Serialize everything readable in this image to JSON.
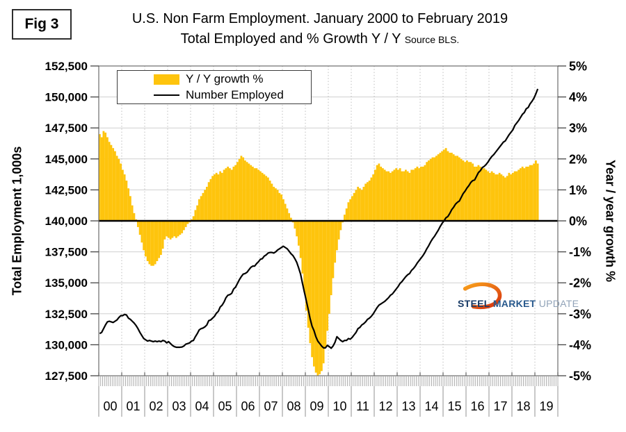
{
  "fig_label": "Fig 3",
  "title_line1": "U.S. Non Farm Employment. January 2000 to February 2019",
  "title_line2": "Total Employed and % Growth Y / Y",
  "source_note": "Source BLS.",
  "left_axis_title": "Total Employment 1,000s",
  "right_axis_title": "Year / year growth %",
  "legend": {
    "bar_label": "Y / Y growth %",
    "line_label": "Number Employed"
  },
  "logo": {
    "word1": "STEEL",
    "word2": "MARKET",
    "word3": "UPDATE",
    "word1_color": "#173A66",
    "word2_color": "#27588C",
    "word3_color": "#91A3B8",
    "swoosh_color_start": "#F9A11B",
    "swoosh_color_end": "#D93A10"
  },
  "colors": {
    "bar": "#FEC40D",
    "line": "#000000",
    "zero_line": "#000000",
    "grid_h": "#CFCFCF",
    "grid_v": "#BDBDBD",
    "border": "#6B6B6B",
    "tick": "#444444",
    "minor_tick": "#9A9A9A"
  },
  "chart_data": {
    "type": "bar+line",
    "title": "U.S. Non Farm Employment. January 2000 to February 2019 — Total Employed and % Growth Y/Y",
    "x_start": "2000-01",
    "x_end": "2019-02",
    "x_axis_span_years": 20,
    "x_year_labels": [
      "00",
      "01",
      "02",
      "03",
      "04",
      "05",
      "06",
      "07",
      "08",
      "09",
      "10",
      "11",
      "12",
      "13",
      "14",
      "15",
      "16",
      "17",
      "18",
      "19"
    ],
    "left_axis": {
      "min": 127500,
      "max": 152500,
      "step": 2500,
      "tick_labels": [
        "152,500",
        "150,000",
        "147,500",
        "145,000",
        "142,500",
        "140,000",
        "137,500",
        "135,000",
        "132,500",
        "130,000",
        "127,500"
      ]
    },
    "right_axis": {
      "min": -5,
      "max": 5,
      "step": 1,
      "tick_labels": [
        "5%",
        "4%",
        "3%",
        "2%",
        "1%",
        "0%",
        "-1%",
        "-2%",
        "-3%",
        "-4%",
        "-5%"
      ]
    },
    "series": [
      {
        "name": "Y / Y growth %",
        "type": "bar",
        "axis": "right",
        "unit": "%",
        "values": [
          2.8,
          2.7,
          2.9,
          2.85,
          2.7,
          2.55,
          2.45,
          2.35,
          2.25,
          2.1,
          2.0,
          1.85,
          1.65,
          1.5,
          1.3,
          1.05,
          0.8,
          0.5,
          0.25,
          0.05,
          -0.2,
          -0.45,
          -0.7,
          -0.95,
          -1.15,
          -1.3,
          -1.4,
          -1.45,
          -1.45,
          -1.4,
          -1.3,
          -1.2,
          -1.1,
          -0.9,
          -0.6,
          -0.5,
          -0.55,
          -0.6,
          -0.55,
          -0.5,
          -0.55,
          -0.5,
          -0.45,
          -0.4,
          -0.3,
          -0.2,
          -0.1,
          -0.05,
          0.05,
          0.15,
          0.35,
          0.5,
          0.7,
          0.8,
          0.9,
          1.0,
          1.1,
          1.25,
          1.35,
          1.45,
          1.5,
          1.55,
          1.5,
          1.6,
          1.55,
          1.65,
          1.7,
          1.75,
          1.7,
          1.65,
          1.75,
          1.8,
          1.9,
          2.0,
          2.1,
          2.05,
          1.95,
          1.9,
          1.85,
          1.8,
          1.75,
          1.7,
          1.7,
          1.65,
          1.6,
          1.55,
          1.5,
          1.45,
          1.4,
          1.3,
          1.2,
          1.1,
          1.05,
          1.0,
          0.9,
          0.85,
          0.7,
          0.55,
          0.4,
          0.25,
          0.1,
          -0.05,
          -0.25,
          -0.5,
          -0.8,
          -1.2,
          -1.7,
          -2.3,
          -2.9,
          -3.45,
          -3.95,
          -4.4,
          -4.7,
          -4.9,
          -5.0,
          -4.95,
          -4.85,
          -4.6,
          -4.1,
          -3.55,
          -3.0,
          -2.4,
          -1.85,
          -1.35,
          -0.95,
          -0.6,
          -0.3,
          -0.05,
          0.2,
          0.4,
          0.6,
          0.7,
          0.8,
          0.9,
          1.0,
          1.1,
          1.05,
          1.0,
          1.1,
          1.2,
          1.25,
          1.3,
          1.4,
          1.5,
          1.65,
          1.8,
          1.85,
          1.75,
          1.7,
          1.65,
          1.6,
          1.6,
          1.55,
          1.6,
          1.65,
          1.7,
          1.65,
          1.7,
          1.6,
          1.6,
          1.65,
          1.6,
          1.55,
          1.65,
          1.65,
          1.7,
          1.75,
          1.7,
          1.75,
          1.75,
          1.8,
          1.9,
          1.95,
          2.0,
          2.05,
          2.05,
          2.1,
          2.15,
          2.2,
          2.25,
          2.3,
          2.35,
          2.25,
          2.2,
          2.2,
          2.15,
          2.1,
          2.1,
          2.05,
          2.0,
          1.95,
          1.9,
          1.95,
          1.9,
          1.9,
          1.85,
          1.75,
          1.75,
          1.8,
          1.75,
          1.7,
          1.7,
          1.65,
          1.6,
          1.55,
          1.6,
          1.55,
          1.5,
          1.5,
          1.55,
          1.5,
          1.45,
          1.4,
          1.45,
          1.55,
          1.5,
          1.55,
          1.6,
          1.6,
          1.65,
          1.7,
          1.75,
          1.7,
          1.75,
          1.75,
          1.8,
          1.8,
          1.85,
          1.95,
          1.85
        ]
      },
      {
        "name": "Number Employed",
        "type": "line",
        "axis": "left",
        "unit": "thousands",
        "values": [
          130900,
          131000,
          131300,
          131600,
          131850,
          131900,
          131850,
          131800,
          131900,
          132000,
          132200,
          132350,
          132350,
          132450,
          132400,
          132150,
          132050,
          131900,
          131750,
          131550,
          131300,
          131000,
          130750,
          130500,
          130400,
          130300,
          130350,
          130300,
          130250,
          130300,
          130250,
          130300,
          130250,
          130350,
          130300,
          130150,
          130250,
          130100,
          129950,
          129850,
          129800,
          129800,
          129800,
          129820,
          129900,
          130050,
          130100,
          130150,
          130300,
          130350,
          130650,
          130900,
          131200,
          131300,
          131350,
          131450,
          131600,
          131950,
          132000,
          132150,
          132300,
          132550,
          132700,
          133050,
          133200,
          133450,
          133800,
          134000,
          134050,
          134150,
          134500,
          134650,
          134950,
          135250,
          135500,
          135700,
          135750,
          135850,
          136050,
          136250,
          136350,
          136350,
          136550,
          136700,
          136900,
          136950,
          137150,
          137250,
          137400,
          137450,
          137450,
          137400,
          137500,
          137650,
          137750,
          137850,
          137950,
          137850,
          137750,
          137550,
          137350,
          137200,
          136950,
          136650,
          136200,
          135700,
          134950,
          134250,
          133550,
          132850,
          132100,
          131500,
          131150,
          130650,
          130300,
          130100,
          129900,
          129750,
          129750,
          129950,
          129850,
          129720,
          129900,
          130200,
          130650,
          130500,
          130350,
          130250,
          130350,
          130350,
          130500,
          130450,
          130600,
          130800,
          131000,
          131300,
          131400,
          131600,
          131700,
          131850,
          132050,
          132150,
          132300,
          132500,
          132750,
          133000,
          133200,
          133300,
          133400,
          133500,
          133650,
          133800,
          134000,
          134100,
          134300,
          134500,
          134700,
          134950,
          135100,
          135300,
          135500,
          135650,
          135750,
          136000,
          136150,
          136350,
          136600,
          136800,
          137000,
          137200,
          137450,
          137750,
          138000,
          138300,
          138550,
          138750,
          139000,
          139250,
          139550,
          139800,
          140000,
          140250,
          140350,
          140600,
          140900,
          141100,
          141350,
          141500,
          141600,
          141900,
          142200,
          142400,
          142650,
          142850,
          143100,
          143250,
          143300,
          143600,
          143900,
          144050,
          144300,
          144400,
          144550,
          144750,
          145000,
          145200,
          145350,
          145550,
          145750,
          145950,
          146150,
          146350,
          146450,
          146700,
          146950,
          147150,
          147350,
          147700,
          147900,
          148100,
          148350,
          148600,
          148750,
          149050,
          149150,
          149450,
          149650,
          149900,
          150250,
          150650
        ]
      }
    ],
    "legend_position": "top-left-inside",
    "grid": {
      "horizontal": "solid",
      "vertical": "dotted-yearly"
    }
  }
}
